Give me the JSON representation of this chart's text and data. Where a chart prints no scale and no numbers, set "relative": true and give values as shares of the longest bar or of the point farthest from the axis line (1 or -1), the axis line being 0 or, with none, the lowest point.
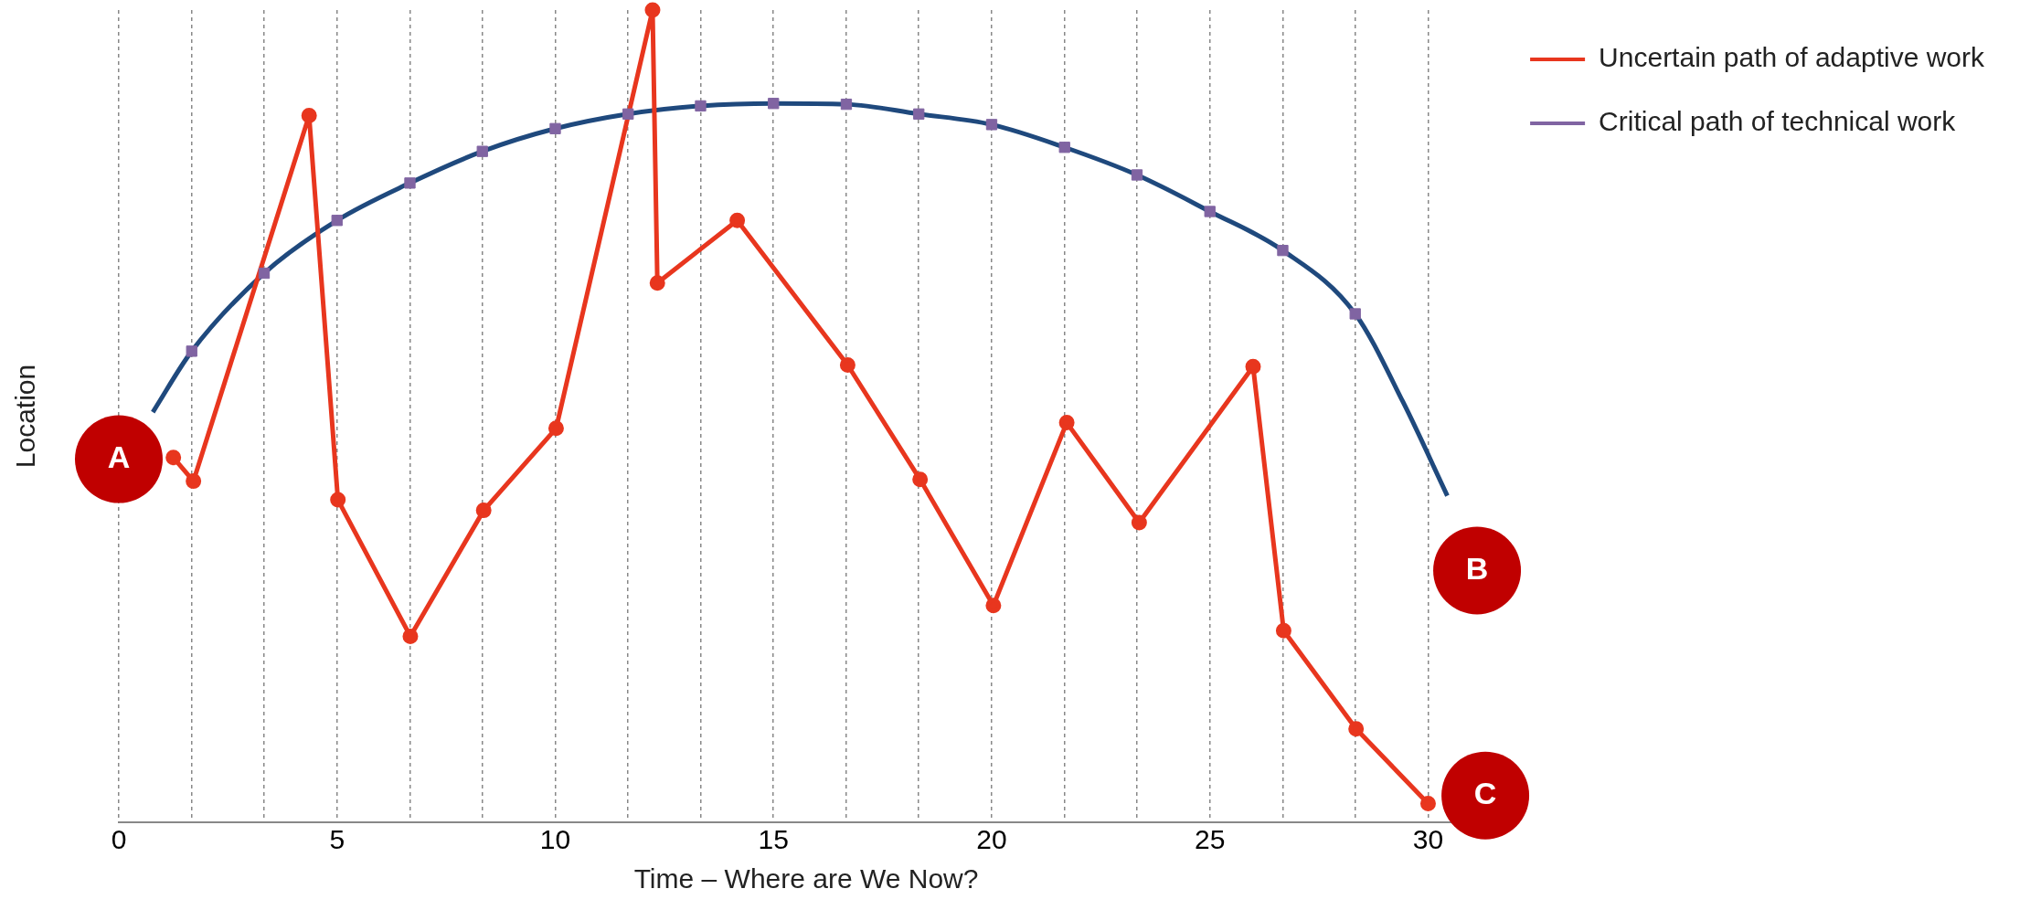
{
  "chart_data": {
    "type": "line",
    "relative": true,
    "xlabel": "Time – Where are We Now?",
    "ylabel": "Location",
    "xlim": [
      0,
      31.5
    ],
    "xticks": [
      0,
      {
        "value": 1.67,
        "label": null
      },
      {
        "value": 3.33,
        "label": null
      },
      5,
      {
        "value": 6.67,
        "label": null
      },
      {
        "value": 8.33,
        "label": null
      },
      10,
      {
        "value": 11.67,
        "label": null
      },
      {
        "value": 13.33,
        "label": null
      },
      15,
      {
        "value": 16.67,
        "label": null
      },
      {
        "value": 18.33,
        "label": null
      },
      20,
      {
        "value": 21.67,
        "label": null
      },
      {
        "value": 23.33,
        "label": null
      },
      25,
      {
        "value": 26.67,
        "label": null
      },
      {
        "value": 28.33,
        "label": null
      },
      30
    ],
    "grid": "x",
    "legend": "top right",
    "series": [
      {
        "name": "Uncertain path of adaptive work",
        "color": "#e8361e",
        "marker": "circle",
        "x": [
          1.25,
          1.71,
          4.36,
          5.02,
          6.68,
          8.36,
          10.02,
          12.23,
          12.34,
          14.17,
          16.7,
          18.36,
          20.04,
          21.72,
          23.38,
          25.99,
          26.69,
          28.35,
          30
        ],
        "values": [
          0.449,
          0.42,
          0.87,
          0.397,
          0.229,
          0.384,
          0.485,
          1,
          0.664,
          0.741,
          0.563,
          0.422,
          0.267,
          0.492,
          0.369,
          0.561,
          0.236,
          0.115,
          0.023
        ]
      },
      {
        "type": "line",
        "color": "#1f497d",
        "marker": "none",
        "x": [
          0.78,
          1.67,
          3.33,
          5,
          6.67,
          8.33,
          10,
          11.67,
          13.33,
          15,
          16.67,
          18.33,
          20,
          21.67,
          23.33,
          25,
          26.67,
          28.33,
          29.42,
          30.44
        ],
        "values": [
          0.505,
          0.58,
          0.676,
          0.741,
          0.787,
          0.826,
          0.854,
          0.872,
          0.882,
          0.885,
          0.884,
          0.872,
          0.859,
          0.831,
          0.797,
          0.752,
          0.704,
          0.626,
          0.518,
          0.402
        ]
      },
      {
        "type": "scatter",
        "name": "Critical path of technical work",
        "color": "#8064a2",
        "marker": "square",
        "x": [
          1.67,
          3.33,
          5,
          6.67,
          8.33,
          10,
          11.67,
          13.33,
          15,
          16.67,
          18.33,
          20,
          21.67,
          23.33,
          25,
          26.67,
          28.33
        ],
        "values": [
          0.58,
          0.676,
          0.741,
          0.787,
          0.826,
          0.854,
          0.872,
          0.882,
          0.885,
          0.884,
          0.872,
          0.859,
          0.831,
          0.797,
          0.752,
          0.704,
          0.626
        ]
      }
    ],
    "annotations": [
      "A",
      "B",
      "C"
    ]
  }
}
